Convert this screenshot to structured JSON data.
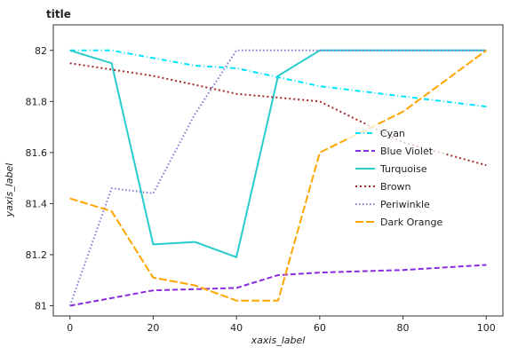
{
  "chart_data": {
    "type": "line",
    "title": "title",
    "xlabel": "xaxis_label",
    "ylabel": "yaxis_label",
    "xlim": [
      -4,
      104
    ],
    "ylim": [
      80.96,
      82.1
    ],
    "xticks": [
      0,
      20,
      40,
      60,
      80,
      100
    ],
    "yticks": [
      81,
      81.2,
      81.4,
      81.6,
      81.8,
      82
    ],
    "ytick_labels": [
      "81",
      "81.2",
      "81.4",
      "81.6",
      "81.8",
      "82"
    ],
    "grid": false,
    "legend_position": "center-right",
    "series": [
      {
        "name": "Cyan",
        "color": "#00e5ff",
        "dash": "6,3,1,3",
        "points": [
          [
            0,
            82
          ],
          [
            10,
            82
          ],
          [
            20,
            81.97
          ],
          [
            30,
            81.94
          ],
          [
            40,
            81.93
          ],
          [
            60,
            81.86
          ],
          [
            80,
            81.82
          ],
          [
            100,
            81.78
          ]
        ]
      },
      {
        "name": "Blue Violet",
        "color": "#8a2be2",
        "dash": "6,3",
        "points": [
          [
            0,
            81
          ],
          [
            20,
            81.06
          ],
          [
            40,
            81.07
          ],
          [
            50,
            81.12
          ],
          [
            60,
            81.13
          ],
          [
            80,
            81.14
          ],
          [
            100,
            81.16
          ]
        ]
      },
      {
        "name": "Turquoise",
        "color": "#27cccc",
        "dash": "",
        "points": [
          [
            0,
            82
          ],
          [
            10,
            81.95
          ],
          [
            20,
            81.24
          ],
          [
            30,
            81.25
          ],
          [
            40,
            81.19
          ],
          [
            50,
            81.9
          ],
          [
            60,
            82
          ],
          [
            80,
            82
          ],
          [
            100,
            82
          ]
        ]
      },
      {
        "name": "Brown",
        "color": "#a52a2a",
        "dash": "2,3",
        "points": [
          [
            0,
            81.95
          ],
          [
            20,
            81.9
          ],
          [
            40,
            81.83
          ],
          [
            60,
            81.8
          ],
          [
            80,
            81.64
          ],
          [
            100,
            81.55
          ]
        ]
      },
      {
        "name": "Periwinkle",
        "color": "#7b7bd6",
        "dash": "1.5,2.5",
        "points": [
          [
            0,
            81
          ],
          [
            10,
            81.46
          ],
          [
            20,
            81.44
          ],
          [
            30,
            81.75
          ],
          [
            40,
            82
          ],
          [
            60,
            82
          ],
          [
            80,
            82
          ],
          [
            100,
            82
          ]
        ]
      },
      {
        "name": "Dark Orange",
        "color": "#ffa500",
        "dash": "9,3",
        "points": [
          [
            0,
            81.42
          ],
          [
            10,
            81.37
          ],
          [
            20,
            81.11
          ],
          [
            30,
            81.08
          ],
          [
            40,
            81.02
          ],
          [
            50,
            81.02
          ],
          [
            60,
            81.6
          ],
          [
            80,
            81.76
          ],
          [
            100,
            82
          ]
        ]
      }
    ]
  }
}
